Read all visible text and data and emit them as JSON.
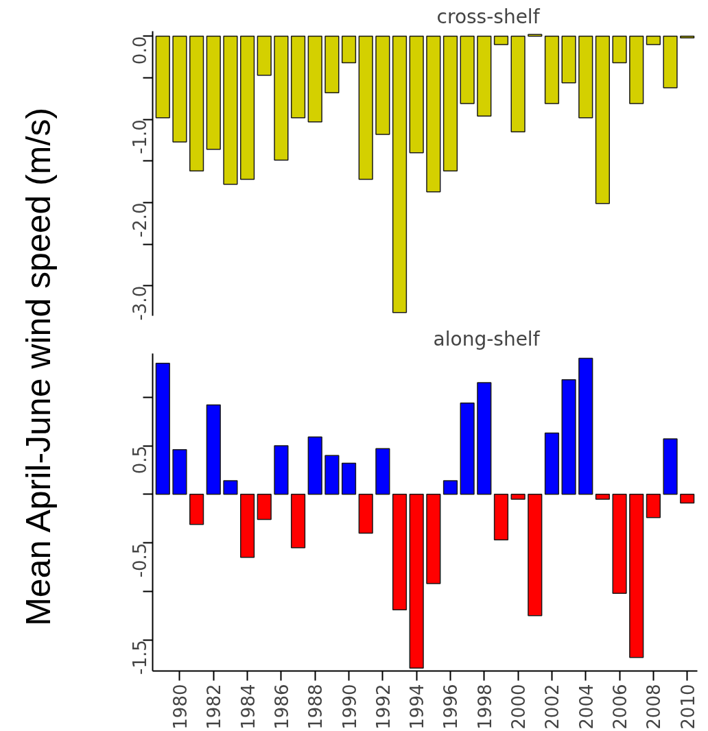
{
  "chart_data": [
    {
      "type": "bar",
      "title": "cross-shelf",
      "ylabel": "Mean April-June wind speed (m/s)",
      "x": [
        1979,
        1980,
        1981,
        1982,
        1983,
        1984,
        1985,
        1986,
        1987,
        1988,
        1989,
        1990,
        1991,
        1992,
        1993,
        1994,
        1995,
        1996,
        1997,
        1998,
        1999,
        2000,
        2001,
        2002,
        2003,
        2004,
        2005,
        2006,
        2007,
        2008,
        2009,
        2010
      ],
      "values": [
        -0.98,
        -1.27,
        -1.62,
        -1.36,
        -1.78,
        -1.72,
        -0.47,
        -1.49,
        -0.98,
        -1.03,
        -0.68,
        -0.32,
        -1.72,
        -1.18,
        -3.32,
        -1.4,
        -1.87,
        -1.62,
        -0.81,
        -0.96,
        -0.1,
        -1.15,
        0.02,
        -0.81,
        -0.56,
        -0.98,
        -2.01,
        -0.32,
        -0.81,
        -0.1,
        -0.62,
        -0.02
      ],
      "color": "#d4d000",
      "ylim": [
        -3.36,
        0.06
      ],
      "yticks": [
        {
          "value": 0,
          "label": "0.0"
        },
        {
          "value": -0.5,
          "label": null
        },
        {
          "value": -1,
          "label": "-1.0"
        },
        {
          "value": -1.5,
          "label": null
        },
        {
          "value": -2,
          "label": "-2.0"
        },
        {
          "value": -2.5,
          "label": null
        },
        {
          "value": -3,
          "label": "-3.0"
        }
      ],
      "tick_labels": "y"
    },
    {
      "type": "bar",
      "title": "along-shelf",
      "x": [
        1979,
        1980,
        1981,
        1982,
        1983,
        1984,
        1985,
        1986,
        1987,
        1988,
        1989,
        1990,
        1991,
        1992,
        1993,
        1994,
        1995,
        1996,
        1997,
        1998,
        1999,
        2000,
        2001,
        2002,
        2003,
        2004,
        2005,
        2006,
        2007,
        2008,
        2009,
        2010
      ],
      "values": [
        1.35,
        0.46,
        -0.31,
        0.92,
        0.14,
        -0.65,
        -0.26,
        0.5,
        -0.55,
        0.59,
        0.4,
        0.32,
        -0.4,
        0.47,
        -1.19,
        -1.79,
        -0.92,
        0.14,
        0.94,
        1.15,
        -0.47,
        -0.05,
        -1.25,
        0.63,
        1.18,
        1.4,
        -0.05,
        -1.02,
        -1.68,
        -0.24,
        0.57,
        -0.09
      ],
      "colors": [
        "#0000ff",
        "#0000ff",
        "#ff0000",
        "#0000ff",
        "#0000ff",
        "#ff0000",
        "#ff0000",
        "#0000ff",
        "#ff0000",
        "#0000ff",
        "#0000ff",
        "#0000ff",
        "#ff0000",
        "#0000ff",
        "#ff0000",
        "#ff0000",
        "#ff0000",
        "#0000ff",
        "#0000ff",
        "#0000ff",
        "#ff0000",
        "#ff0000",
        "#ff0000",
        "#0000ff",
        "#0000ff",
        "#0000ff",
        "#ff0000",
        "#ff0000",
        "#ff0000",
        "#ff0000",
        "#0000ff",
        "#ff0000"
      ],
      "xlim": [
        1978.4,
        2010.6
      ],
      "ylim": [
        -1.82,
        1.45
      ],
      "xticks": [
        1980,
        1982,
        1984,
        1986,
        1988,
        1990,
        1992,
        1994,
        1996,
        1998,
        2000,
        2002,
        2004,
        2006,
        2008,
        2010
      ],
      "yticks": [
        {
          "value": 1,
          "label": null
        },
        0.5,
        {
          "value": 0,
          "label": null
        },
        -0.5,
        {
          "value": -1,
          "label": null
        },
        -1.5
      ]
    }
  ]
}
